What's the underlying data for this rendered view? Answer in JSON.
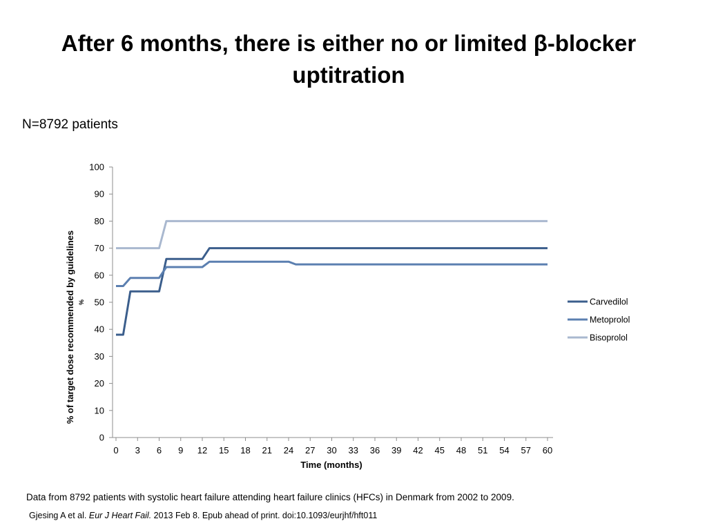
{
  "slide": {
    "title_line1": "After 6 months, there is either no or limited β-blocker",
    "title_line2": "uptitration",
    "subtitle": "N=8792 patients",
    "footer_text": "Data from 8792 patients with systolic heart failure attending heart failure clinics (HFCs) in Denmark from 2002 to 2009.",
    "citation_authors": "Gjesing A et al.",
    "citation_journal": "Eur J Heart Fail.",
    "citation_rest": "2013 Feb 8. Epub ahead of print. doi:10.1093/eurjhf/hft011"
  },
  "chart_data": {
    "type": "line",
    "xlabel": "Time (months)",
    "ylabel": "% of target dose recommended by guidelines",
    "y_stray_mark": "%",
    "xlim": [
      0,
      60
    ],
    "ylim": [
      0,
      100
    ],
    "x_ticks": [
      0,
      3,
      6,
      9,
      12,
      15,
      18,
      21,
      24,
      27,
      30,
      33,
      36,
      39,
      42,
      45,
      48,
      51,
      54,
      57,
      60
    ],
    "y_ticks": [
      0,
      10,
      20,
      30,
      40,
      50,
      60,
      70,
      80,
      90,
      100
    ],
    "grid": false,
    "legend_position": "right",
    "series": [
      {
        "name": "Carvedilol",
        "color": "#3b5e8c",
        "points": [
          [
            0,
            38
          ],
          [
            1,
            38
          ],
          [
            2,
            54
          ],
          [
            3,
            54
          ],
          [
            4,
            54
          ],
          [
            5,
            54
          ],
          [
            6,
            54
          ],
          [
            7,
            66
          ],
          [
            8,
            66
          ],
          [
            9,
            66
          ],
          [
            10,
            66
          ],
          [
            11,
            66
          ],
          [
            12,
            66
          ],
          [
            13,
            70
          ],
          [
            20,
            70
          ],
          [
            30,
            70
          ],
          [
            40,
            70
          ],
          [
            50,
            70
          ],
          [
            60,
            70
          ]
        ]
      },
      {
        "name": "Metoprolol",
        "color": "#5b7fb0",
        "points": [
          [
            0,
            56
          ],
          [
            1,
            56
          ],
          [
            2,
            59
          ],
          [
            3,
            59
          ],
          [
            4,
            59
          ],
          [
            5,
            59
          ],
          [
            6,
            59
          ],
          [
            7,
            63
          ],
          [
            8,
            63
          ],
          [
            9,
            63
          ],
          [
            10,
            63
          ],
          [
            11,
            63
          ],
          [
            12,
            63
          ],
          [
            13,
            65
          ],
          [
            20,
            65
          ],
          [
            24,
            65
          ],
          [
            25,
            64
          ],
          [
            30,
            64
          ],
          [
            40,
            64
          ],
          [
            50,
            64
          ],
          [
            60,
            64
          ]
        ]
      },
      {
        "name": "Bisoprolol",
        "color": "#a9b8cf",
        "points": [
          [
            0,
            70
          ],
          [
            1,
            70
          ],
          [
            2,
            70
          ],
          [
            3,
            70
          ],
          [
            4,
            70
          ],
          [
            5,
            70
          ],
          [
            6,
            70
          ],
          [
            7,
            80
          ],
          [
            20,
            80
          ],
          [
            30,
            80
          ],
          [
            40,
            80
          ],
          [
            50,
            80
          ],
          [
            60,
            80
          ]
        ]
      }
    ]
  }
}
